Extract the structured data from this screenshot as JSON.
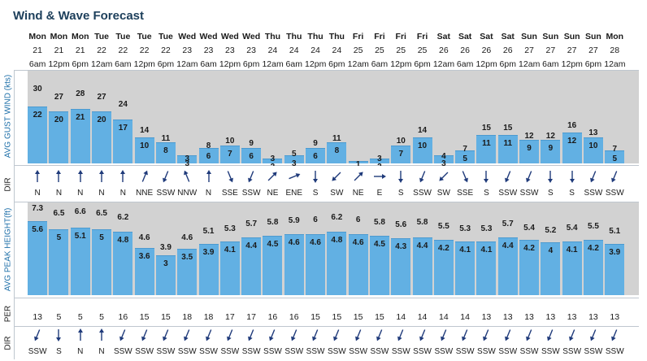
{
  "page_title": "Wind & Wave Forecast",
  "labels": {
    "wind_speed": "AVG GUST WIND (kts)",
    "wind_dir": "DIR",
    "wave_height": "AVG PEAK HEIGHT(ft)",
    "period": "PER",
    "wave_dir": "DIR"
  },
  "columns": {
    "days": [
      "Mon",
      "Mon",
      "Mon",
      "Tue",
      "Tue",
      "Tue",
      "Tue",
      "Wed",
      "Wed",
      "Wed",
      "Wed",
      "Thu",
      "Thu",
      "Thu",
      "Thu",
      "Fri",
      "Fri",
      "Fri",
      "Fri",
      "Sat",
      "Sat",
      "Sat",
      "Sat",
      "Sun",
      "Sun",
      "Sun",
      "Sun",
      "Mon"
    ],
    "dates": [
      "21",
      "21",
      "21",
      "22",
      "22",
      "22",
      "22",
      "23",
      "23",
      "23",
      "23",
      "24",
      "24",
      "24",
      "24",
      "25",
      "25",
      "25",
      "25",
      "26",
      "26",
      "26",
      "26",
      "27",
      "27",
      "27",
      "27",
      "28"
    ],
    "times": [
      "6am",
      "12pm",
      "6pm",
      "12am",
      "6am",
      "12pm",
      "6pm",
      "12am",
      "6am",
      "12pm",
      "6pm",
      "12am",
      "6am",
      "12pm",
      "6pm",
      "12am",
      "6am",
      "12pm",
      "6pm",
      "12am",
      "6am",
      "12pm",
      "6pm",
      "12am",
      "6am",
      "12pm",
      "6pm",
      "12am"
    ]
  },
  "colors": {
    "bar": "#62b0e3",
    "panel": "#d2d2d2",
    "title": "#1d3f5b",
    "arrow": "#1f3a7a",
    "label": "#1c6ea8"
  },
  "chart_data": [
    {
      "type": "bar",
      "title": "Wind & Wave Forecast",
      "ylabel": "AVG GUST WIND (kts)",
      "ylim": [
        0,
        33
      ],
      "categories": [
        "Mon 21 6am",
        "Mon 21 12pm",
        "Mon 21 6pm",
        "Tue 22 12am",
        "Tue 22 6am",
        "Tue 22 12pm",
        "Tue 22 6pm",
        "Wed 23 12am",
        "Wed 23 6am",
        "Wed 23 12pm",
        "Wed 23 6pm",
        "Thu 24 12am",
        "Thu 24 6am",
        "Thu 24 12pm",
        "Thu 24 6pm",
        "Fri 25 12am",
        "Fri 25 6am",
        "Fri 25 12pm",
        "Fri 25 6pm",
        "Sat 26 12am",
        "Sat 26 6am",
        "Sat 26 12pm",
        "Sat 26 6pm",
        "Sun 27 12am",
        "Sun 27 6am",
        "Sun 27 12pm",
        "Sun 27 6pm",
        "Mon 28 12am"
      ],
      "series": [
        {
          "name": "AVG",
          "values": [
            22,
            20,
            21,
            20,
            17,
            10,
            8,
            3,
            6,
            7,
            6,
            2,
            3,
            6,
            8,
            1,
            2,
            7,
            10,
            3,
            5,
            11,
            11,
            9,
            9,
            12,
            10,
            5
          ]
        },
        {
          "name": "GUST",
          "values": [
            30,
            27,
            28,
            27,
            24,
            14,
            11,
            3,
            8,
            10,
            9,
            3,
            5,
            9,
            11,
            1,
            3,
            10,
            14,
            4,
            7,
            15,
            15,
            12,
            12,
            16,
            13,
            7
          ]
        }
      ],
      "direction": [
        "N",
        "N",
        "N",
        "N",
        "N",
        "NNE",
        "SSW",
        "NNW",
        "N",
        "SSE",
        "SSW",
        "NE",
        "ENE",
        "S",
        "SW",
        "NE",
        "E",
        "S",
        "SSW",
        "SW",
        "SSE",
        "S",
        "SSW",
        "SSW",
        "S",
        "S",
        "SSW",
        "SSW"
      ]
    },
    {
      "type": "bar",
      "ylabel": "AVG PEAK HEIGHT(ft)",
      "ylim": [
        0,
        8
      ],
      "categories": [
        "Mon 21 6am",
        "Mon 21 12pm",
        "Mon 21 6pm",
        "Tue 22 12am",
        "Tue 22 6am",
        "Tue 22 12pm",
        "Tue 22 6pm",
        "Wed 23 12am",
        "Wed 23 6am",
        "Wed 23 12pm",
        "Wed 23 6pm",
        "Thu 24 12am",
        "Thu 24 6am",
        "Thu 24 12pm",
        "Thu 24 6pm",
        "Fri 25 12am",
        "Fri 25 6am",
        "Fri 25 12pm",
        "Fri 25 6pm",
        "Sat 26 12am",
        "Sat 26 6am",
        "Sat 26 12pm",
        "Sat 26 6pm",
        "Sun 27 12am",
        "Sun 27 6am",
        "Sun 27 12pm",
        "Sun 27 6pm",
        "Mon 28 12am"
      ],
      "series": [
        {
          "name": "AVG",
          "values": [
            5.6,
            5,
            5.1,
            5,
            4.8,
            3.6,
            3,
            3.5,
            3.9,
            4.1,
            4.4,
            4.5,
            4.6,
            4.6,
            4.8,
            4.6,
            4.5,
            4.3,
            4.4,
            4.2,
            4.1,
            4.1,
            4.4,
            4.2,
            4,
            4.1,
            4.2,
            3.9
          ]
        },
        {
          "name": "PEAK",
          "values": [
            7.3,
            6.5,
            6.6,
            6.5,
            6.2,
            4.6,
            3.9,
            4.6,
            5.1,
            5.3,
            5.7,
            5.8,
            5.9,
            6,
            6.2,
            6,
            5.8,
            5.6,
            5.8,
            5.5,
            5.3,
            5.3,
            5.7,
            5.4,
            5.2,
            5.4,
            5.5,
            5.1
          ]
        }
      ],
      "period": [
        13,
        5,
        5,
        5,
        16,
        15,
        15,
        18,
        18,
        17,
        17,
        16,
        16,
        15,
        15,
        15,
        15,
        14,
        14,
        14,
        14,
        13,
        13,
        13,
        13,
        13,
        13,
        13
      ],
      "direction": [
        "SSW",
        "S",
        "N",
        "N",
        "SSW",
        "SSW",
        "SSW",
        "SSW",
        "SSW",
        "SSW",
        "SSW",
        "SSW",
        "SSW",
        "SSW",
        "SSW",
        "SSW",
        "SSW",
        "SSW",
        "SSW",
        "SSW",
        "SSW",
        "SSW",
        "SSW",
        "SSW",
        "SSW",
        "SSW",
        "SSW",
        "SSW"
      ]
    }
  ]
}
